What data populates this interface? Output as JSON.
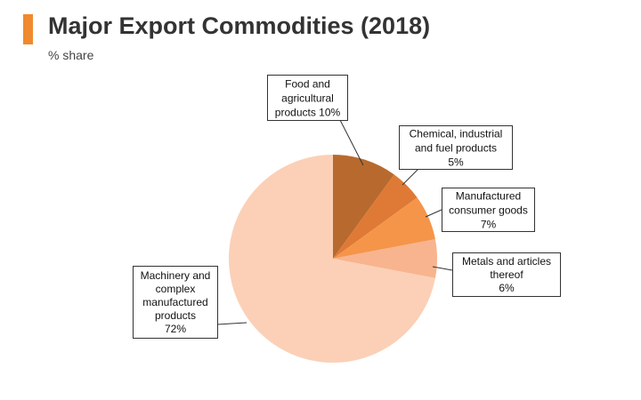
{
  "header": {
    "title": "Major Export Commodities (2018)",
    "subtitle": "% share",
    "accent_color": "#f08a2e"
  },
  "chart_data": {
    "type": "pie",
    "title": "Major Export Commodities (2018)",
    "subtitle": "% share",
    "start_angle_deg": 0,
    "direction": "clockwise",
    "slices": [
      {
        "id": "food",
        "label_lines": [
          "Food and",
          "agricultural",
          "products 10%"
        ],
        "value": 10,
        "color": "#b86a2e"
      },
      {
        "id": "chemical",
        "label_lines": [
          "Chemical, industrial",
          "and fuel products",
          "5%"
        ],
        "value": 5,
        "color": "#de7a35"
      },
      {
        "id": "consumer",
        "label_lines": [
          "Manufactured",
          "consumer goods",
          "7%"
        ],
        "value": 7,
        "color": "#f5954a"
      },
      {
        "id": "metals",
        "label_lines": [
          "Metals and articles",
          "thereof",
          "6%"
        ],
        "value": 6,
        "color": "#f8b48e"
      },
      {
        "id": "machinery",
        "label_lines": [
          "Machinery and",
          "complex",
          "manufactured",
          "products",
          "72%"
        ],
        "value": 72,
        "color": "#fbd0b6"
      }
    ]
  }
}
